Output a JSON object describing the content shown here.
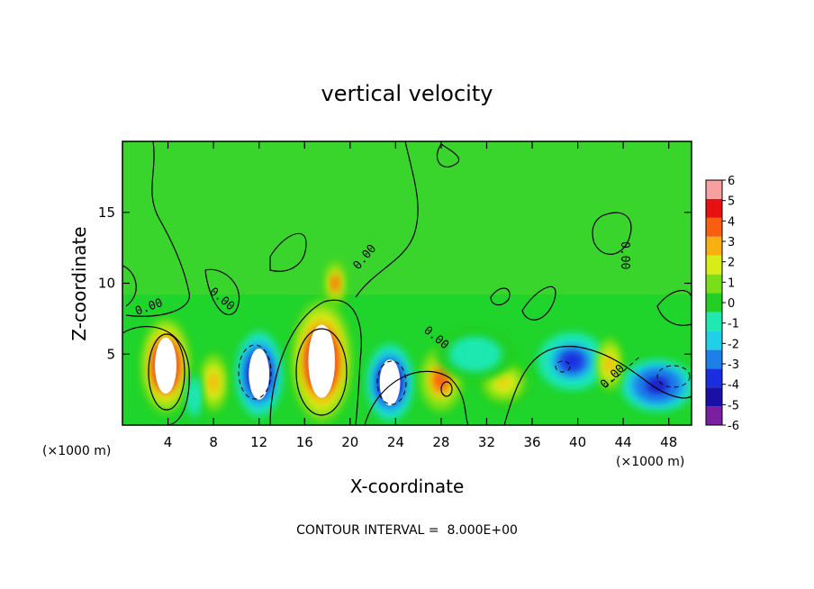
{
  "chart_data": {
    "type": "heatmap",
    "title": "vertical velocity",
    "xlabel": "X-coordinate",
    "ylabel": "Z-coordinate",
    "x_unit_label_left": "(×1000 m)",
    "x_unit_label_right": "(×1000 m)",
    "xlim": [
      0,
      50
    ],
    "ylim": [
      0,
      20
    ],
    "x_ticks": [
      4,
      8,
      12,
      16,
      20,
      24,
      28,
      32,
      36,
      40,
      44,
      48
    ],
    "y_ticks": [
      5,
      10,
      15
    ],
    "contour_interval_text": "CONTOUR INTERVAL =  8.000E+00",
    "contour_label": "0.00",
    "colorbar": {
      "levels": [
        -6,
        -5,
        -4,
        -3,
        -2,
        -1,
        0,
        1,
        2,
        3,
        4,
        5,
        6
      ],
      "labels": [
        "-6",
        "-5",
        "-4",
        "-3",
        "-2",
        "-1",
        "0",
        "1",
        "2",
        "3",
        "4",
        "5",
        "6"
      ],
      "colors": [
        "#7a1fa0",
        "#1a10a8",
        "#1b2de0",
        "#1f7fe8",
        "#1fd0e8",
        "#1fe8b0",
        "#22cf22",
        "#7adf18",
        "#d8ec18",
        "#f8b010",
        "#f86010",
        "#e81010",
        "#f6a0a0"
      ]
    },
    "cells": [
      {
        "x": 3.8,
        "z": 4.2,
        "rx": 2.1,
        "rz": 3.3,
        "value": 8
      },
      {
        "x": 17.5,
        "z": 4.5,
        "rx": 2.6,
        "rz": 4.3,
        "value": 8
      },
      {
        "x": 23.5,
        "z": 3.0,
        "rx": 2.0,
        "rz": 2.7,
        "value": -7
      },
      {
        "x": 12.0,
        "z": 3.6,
        "rx": 2.0,
        "rz": 3.0,
        "value": -7
      },
      {
        "x": 28.0,
        "z": 3.2,
        "rx": 1.8,
        "rz": 2.2,
        "value": 5
      },
      {
        "x": 8.0,
        "z": 3.0,
        "rx": 1.1,
        "rz": 2.0,
        "value": 4
      },
      {
        "x": 39.5,
        "z": 4.5,
        "rx": 3.0,
        "rz": 2.0,
        "value": -5
      },
      {
        "x": 47.0,
        "z": 2.8,
        "rx": 3.2,
        "rz": 1.8,
        "value": -6
      },
      {
        "x": 33.5,
        "z": 3.0,
        "rx": 2.2,
        "rz": 1.6,
        "value": 3
      },
      {
        "x": 42.8,
        "z": 4.3,
        "rx": 1.0,
        "rz": 1.8,
        "value": 4
      },
      {
        "x": 18.7,
        "z": 10.0,
        "rx": 0.8,
        "rz": 1.5,
        "value": 5
      },
      {
        "x": 31.0,
        "z": 5.0,
        "rx": 3.5,
        "rz": 1.8,
        "value": -1.5
      },
      {
        "x": 6.3,
        "z": 2.0,
        "rx": 0.6,
        "rz": 1.8,
        "value": -2
      }
    ]
  }
}
